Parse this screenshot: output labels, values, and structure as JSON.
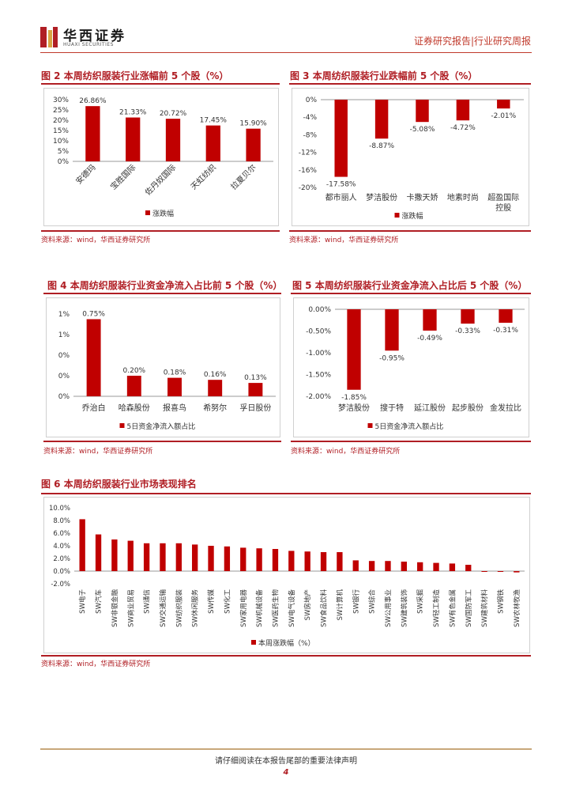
{
  "header": {
    "brand_cn": "华西证券",
    "brand_en": "HUAXI SECURITIES",
    "report_type": "证券研究报告|行业研究周报"
  },
  "colors": {
    "accent": "#b01e24",
    "bar": "#c00000"
  },
  "footer": {
    "disclaimer": "请仔细阅读在本报告尾部的重要法律声明",
    "page": "4"
  },
  "figures": {
    "fig2": {
      "title": "图 2 本周纺织服装行业涨幅前 5 个股（%）",
      "source": "资料来源：wind，华西证券研究所"
    },
    "fig3": {
      "title": "图 3 本周纺织服装行业跌幅前 5 个股（%）",
      "source": "资料来源：wind，华西证券研究所"
    },
    "fig4": {
      "title": "图 4 本周纺织服装行业资金净流入占比前 5 个股（%）",
      "source": "资料来源：wind，华西证券研究所"
    },
    "fig5": {
      "title": "图 5 本周纺织服装行业资金净流入占比后 5 个股（%）",
      "source": "资料来源：wind，华西证券研究所"
    },
    "fig6": {
      "title": "图 6 本周纺织服装行业市场表现排名",
      "source": "资料来源：wind，华西证券研究所"
    }
  },
  "chart_data": [
    {
      "id": "fig2",
      "type": "bar",
      "categories": [
        "安德玛",
        "宝胜国际",
        "佐丹奴国际",
        "天虹纺织",
        "拉夏贝尔"
      ],
      "values": [
        26.86,
        21.33,
        20.72,
        17.45,
        15.9
      ],
      "value_labels": [
        "26.86%",
        "21.33%",
        "20.72%",
        "17.45%",
        "15.90%"
      ],
      "y_ticks": [
        "0%",
        "5%",
        "10%",
        "15%",
        "20%",
        "25%",
        "30%"
      ],
      "ylim": [
        0,
        30
      ],
      "legend": "涨跌幅"
    },
    {
      "id": "fig3",
      "type": "bar",
      "categories": [
        "都市丽人",
        "梦洁股份",
        "卡撒天娇",
        "地素时尚",
        "超盈国际控股"
      ],
      "category_lines": [
        [
          "都市丽人"
        ],
        [
          "梦洁股份"
        ],
        [
          "卡撒天娇"
        ],
        [
          "地素时尚"
        ],
        [
          "超盈国际",
          "控股"
        ]
      ],
      "values": [
        -17.58,
        -8.87,
        -5.08,
        -4.72,
        -2.01
      ],
      "value_labels": [
        "-17.58%",
        "-8.87%",
        "-5.08%",
        "-4.72%",
        "-2.01%"
      ],
      "y_ticks": [
        "-20%",
        "-16%",
        "-12%",
        "-8%",
        "-4%",
        "0%"
      ],
      "ylim": [
        -20,
        0
      ],
      "legend": "涨跌幅"
    },
    {
      "id": "fig4",
      "type": "bar",
      "categories": [
        "乔治白",
        "哈森股份",
        "报喜鸟",
        "希努尔",
        "孚日股份"
      ],
      "values": [
        0.75,
        0.2,
        0.18,
        0.16,
        0.13
      ],
      "value_labels": [
        "0.75%",
        "0.20%",
        "0.18%",
        "0.16%",
        "0.13%"
      ],
      "y_ticks": [
        "0%",
        "0%",
        "0%",
        "1%",
        "1%"
      ],
      "ylim": [
        0,
        0.8
      ],
      "legend": "5日资金净流入额占比"
    },
    {
      "id": "fig5",
      "type": "bar",
      "categories": [
        "梦洁股份",
        "搜于特",
        "延江股份",
        "起步股份",
        "金发拉比"
      ],
      "values": [
        -1.85,
        -0.95,
        -0.49,
        -0.33,
        -0.31
      ],
      "value_labels": [
        "-1.85%",
        "-0.95%",
        "-0.49%",
        "-0.33%",
        "-0.31%"
      ],
      "y_ticks": [
        "-2.00%",
        "-1.50%",
        "-1.00%",
        "-0.50%",
        "0.00%"
      ],
      "ylim": [
        -2.0,
        0
      ],
      "legend": "5日资金净流入额占比"
    },
    {
      "id": "fig6",
      "type": "bar",
      "categories": [
        "SW电子",
        "SW汽车",
        "SW非银金融",
        "SW商业贸易",
        "SW通信",
        "SW交通运输",
        "SW纺织服装",
        "SW休闲服务",
        "SW传媒",
        "SW化工",
        "SW家用电器",
        "SW机械设备",
        "SW医药生物",
        "SW电气设备",
        "SW房地产",
        "SW食品饮料",
        "SW计算机",
        "SW银行",
        "SW综合",
        "SW公用事业",
        "SW建筑装饰",
        "SW采掘",
        "SW轻工制造",
        "SW有色金属",
        "SW国防军工",
        "SW建筑材料",
        "SW钢铁",
        "SW农林牧渔"
      ],
      "values": [
        8.2,
        5.8,
        5.0,
        4.8,
        4.4,
        4.4,
        4.4,
        4.2,
        4.0,
        3.9,
        3.7,
        3.6,
        3.5,
        3.2,
        3.1,
        3.0,
        3.0,
        1.7,
        1.6,
        1.6,
        1.5,
        1.4,
        1.3,
        1.2,
        1.0,
        -0.1,
        -0.1,
        -0.2
      ],
      "y_ticks": [
        "-2.0%",
        "0.0%",
        "2.0%",
        "4.0%",
        "6.0%",
        "8.0%",
        "10.0%"
      ],
      "ylim": [
        -2,
        10
      ],
      "legend": "本周涨跌幅（%）"
    }
  ]
}
